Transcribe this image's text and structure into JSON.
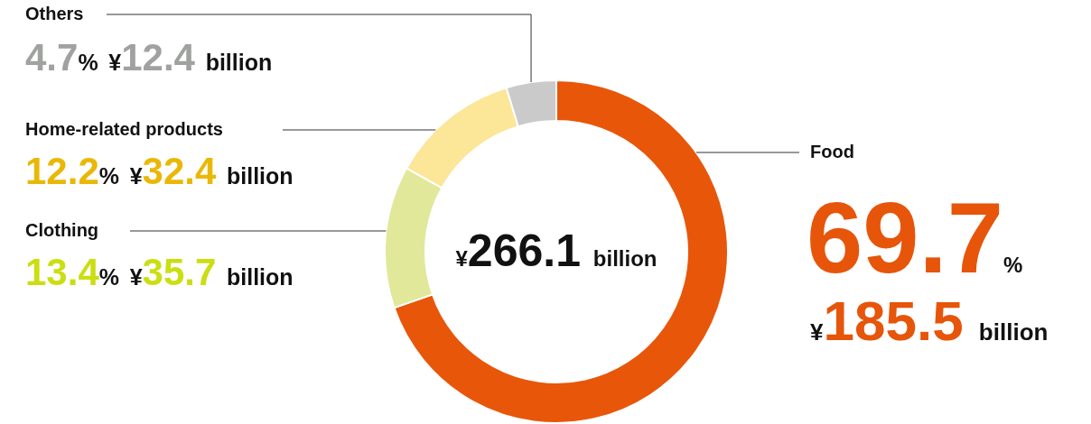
{
  "chart_data": {
    "type": "donut",
    "categories": [
      "Food",
      "Clothing",
      "Home-related products",
      "Others"
    ],
    "values": [
      69.7,
      13.4,
      12.2,
      4.7
    ],
    "colors": [
      "#e8560a",
      "#e1e89a",
      "#fce697",
      "#c9cac9"
    ],
    "value_labels": [
      "69.7% ¥185.5 billion",
      "13.4% ¥35.7 billion",
      "12.2% ¥32.4 billion",
      "4.7% ¥12.4 billion"
    ],
    "annotations": [
      "¥266.1 billion"
    ]
  }
}
